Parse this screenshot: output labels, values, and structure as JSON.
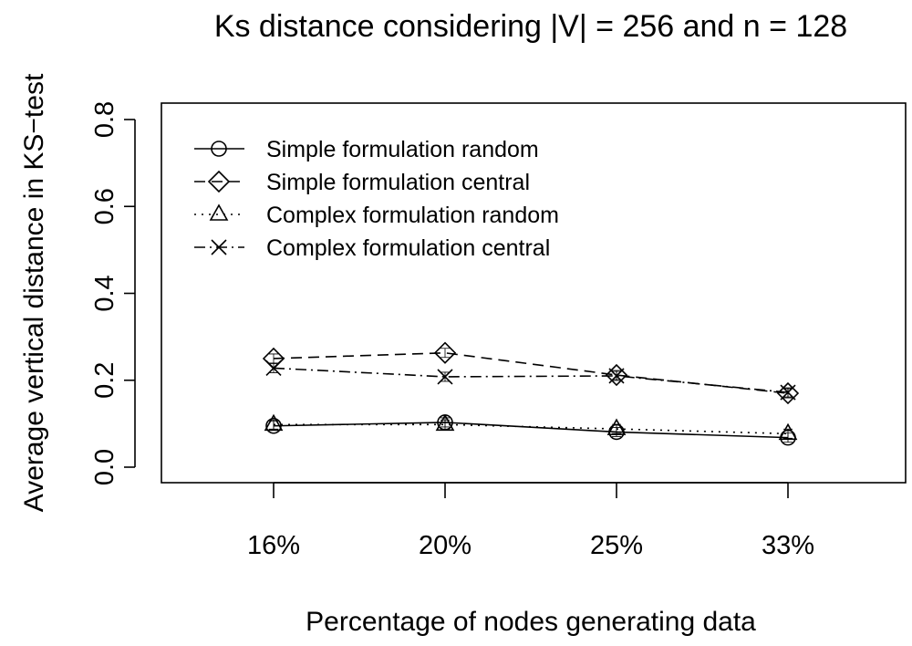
{
  "chart_data": {
    "type": "line",
    "title": "Ks distance considering |V| = 256 and n = 128",
    "xlabel": "Percentage of nodes generating data",
    "ylabel": "Average vertical distance in KS−test",
    "categories": [
      "16%",
      "20%",
      "25%",
      "33%"
    ],
    "ylim": [
      0,
      0.8
    ],
    "yticks": [
      "0.0",
      "0.2",
      "0.4",
      "0.6",
      "0.8"
    ],
    "grid": false,
    "legend_position": "top-left",
    "series": [
      {
        "name": "Simple formulation random",
        "line": "solid",
        "marker": "circle",
        "values": [
          0.095,
          0.103,
          0.081,
          0.068
        ]
      },
      {
        "name": "Simple formulation central",
        "line": "dashed",
        "marker": "diamond",
        "values": [
          0.25,
          0.263,
          0.212,
          0.17
        ]
      },
      {
        "name": "Complex formulation random",
        "line": "dotted",
        "marker": "triangle",
        "values": [
          0.098,
          0.098,
          0.088,
          0.077
        ]
      },
      {
        "name": "Complex formulation central",
        "line": "dashdot",
        "marker": "cross",
        "values": [
          0.228,
          0.208,
          0.21,
          0.172
        ]
      }
    ]
  }
}
